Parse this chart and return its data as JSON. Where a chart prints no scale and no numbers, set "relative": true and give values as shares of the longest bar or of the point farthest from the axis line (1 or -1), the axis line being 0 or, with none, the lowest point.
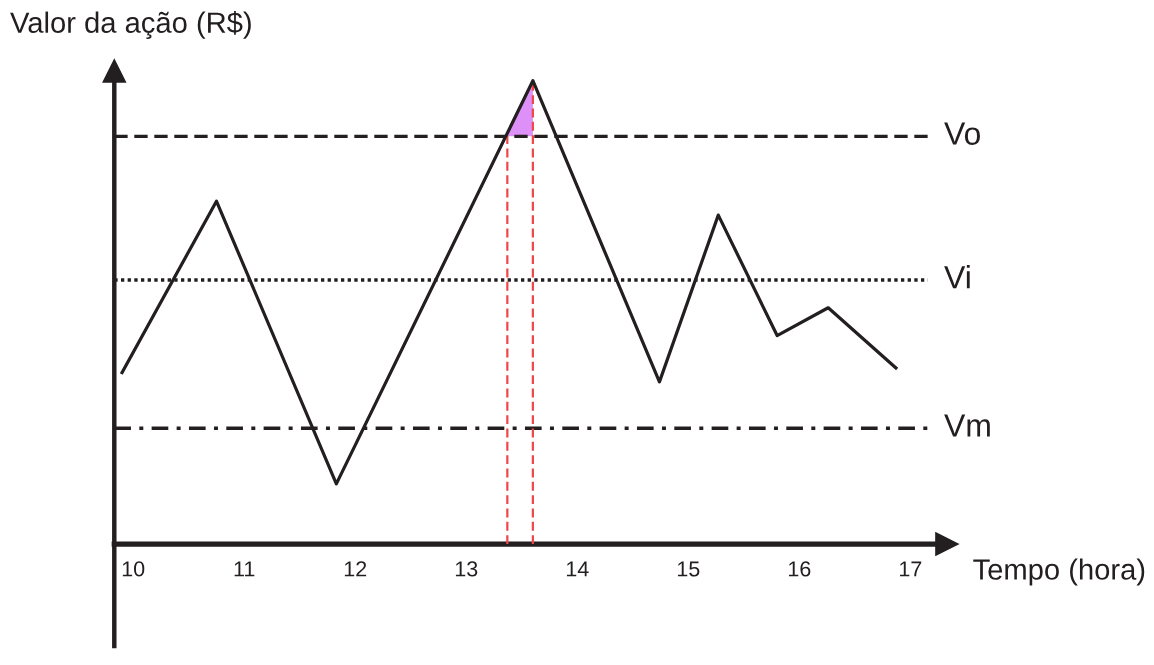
{
  "chart_data": {
    "type": "line",
    "relative": true,
    "xlabel": "Tempo (hora)",
    "ylabel": "Valor da ação (R$)",
    "xlim": [
      9.83,
      17.33
    ],
    "xticks": [
      10,
      11,
      12,
      13,
      14,
      15,
      16,
      17
    ],
    "series": [
      {
        "color": "#231f20",
        "x": [
          9.9,
          10.75,
          11.83,
          13.6,
          14.74,
          15.27,
          15.8,
          16.26,
          16.87
        ],
        "values": [
          0.37,
          0.74,
          0.13,
          1,
          0.35,
          0.71,
          0.45,
          0.51,
          0.38
        ]
      }
    ],
    "ref_lines": [
      {
        "axis": "y",
        "value": 0.88,
        "label": "Vo",
        "line_style": "dashed",
        "color": "#231f20"
      },
      {
        "axis": "y",
        "value": 0.57,
        "label": "Vi",
        "line_style": "dotted",
        "color": "#231f20"
      },
      {
        "axis": "y",
        "value": 0.25,
        "label": "Vm",
        "line_style": "dashdot",
        "color": "#231f20"
      },
      {
        "axis": "x",
        "value": 13.37,
        "line_style": "dashed",
        "color": "#f0474a"
      },
      {
        "axis": "x",
        "value": 13.6,
        "line_style": "dashed",
        "color": "#f0474a"
      }
    ]
  }
}
